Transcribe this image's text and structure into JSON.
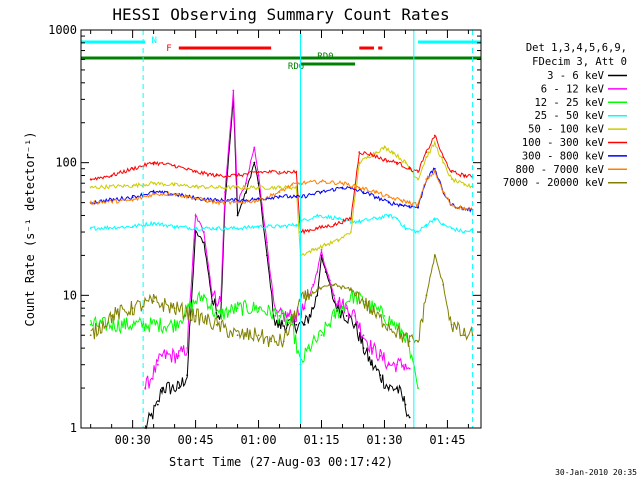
{
  "chart_data": {
    "type": "line",
    "title": "HESSI Observing Summary Count Rates",
    "xlabel": "Start Time (27-Aug-03 00:17:42)",
    "ylabel": "Count Rate (s⁻¹ detector⁻¹)",
    "y_scale": "log",
    "ylim": [
      1,
      1000
    ],
    "xlim": [
      "00:17:42",
      "01:53:00"
    ],
    "grid": false,
    "legend_position": "right",
    "footer": "30-Jan-2010 20:35",
    "x_tick_labels": [
      "00:30",
      "00:45",
      "01:00",
      "01:15",
      "01:30",
      "01:45"
    ],
    "x_ticks_minutes": [
      30,
      45,
      60,
      75,
      90,
      105
    ],
    "y_tick_labels": [
      "1",
      "10",
      "100",
      "1000"
    ],
    "y_ticks": [
      1,
      10,
      100,
      1000
    ],
    "legend_header": [
      "Det 1,3,4,5,6,9,",
      "FDecim 3, Att 0"
    ],
    "flag_labels": {
      "night": "N",
      "flare": "F",
      "rd0": "RD0",
      "rd6": "RD6"
    },
    "flags": {
      "night": [
        [
          "00:17:42",
          "00:33:00"
        ],
        [
          "01:38:00",
          "01:53:00"
        ]
      ],
      "flare": [
        [
          "00:41:00",
          "01:03:00"
        ],
        [
          "01:24:00",
          "01:27:30"
        ],
        [
          "01:28:30",
          "01:29:30"
        ]
      ],
      "rd0": [
        [
          "00:17:42",
          "01:53:00"
        ]
      ],
      "rd6": [
        [
          "01:10:00",
          "01:23:00"
        ]
      ]
    },
    "saa_markers_solid": [
      "01:10:00",
      "01:37:00"
    ],
    "saa_markers_dashed": [
      "00:32:30",
      "01:51:00"
    ],
    "series": [
      {
        "name": "3 - 6 keV",
        "color": "#000000",
        "x": [
          "00:33",
          "00:36",
          "00:37",
          "00:41",
          "00:43",
          "00:45",
          "00:47",
          "00:49",
          "00:51",
          "00:52",
          "00:54",
          "00:55",
          "00:57",
          "00:59",
          "01:00",
          "01:02",
          "01:04",
          "01:05",
          "01:07",
          "01:09",
          "01:11",
          "01:13",
          "01:14",
          "01:15",
          "01:16",
          "01:17",
          "01:18",
          "01:19",
          "01:21",
          "01:23",
          "01:25",
          "01:27",
          "01:29",
          "01:31",
          "01:33",
          "01:35",
          "01:36"
        ],
        "y": [
          1.0,
          1.5,
          2.0,
          2.0,
          2.5,
          30,
          25,
          9,
          7,
          50,
          300,
          40,
          60,
          100,
          70,
          20,
          6,
          6,
          6,
          6,
          6,
          8,
          10,
          20,
          15,
          12,
          9,
          8,
          7,
          6,
          4,
          3,
          2.5,
          2,
          2,
          1.5,
          1.2
        ]
      },
      {
        "name": "6 - 12 keV",
        "color": "#ff00ff",
        "x": [
          "00:33",
          "00:36",
          "00:37",
          "00:41",
          "00:43",
          "00:45",
          "00:47",
          "00:49",
          "00:51",
          "00:52",
          "00:54",
          "00:55",
          "00:57",
          "00:59",
          "01:00",
          "01:02",
          "01:04",
          "01:05",
          "01:07",
          "01:09",
          "01:11",
          "01:13",
          "01:14",
          "01:15",
          "01:16",
          "01:17",
          "01:18",
          "01:19",
          "01:21",
          "01:23",
          "01:25",
          "01:27",
          "01:29",
          "01:31",
          "01:33",
          "01:35",
          "01:36"
        ],
        "y": [
          2.0,
          3.0,
          3.5,
          3.5,
          4.0,
          40,
          30,
          10,
          9,
          60,
          350,
          50,
          70,
          130,
          80,
          25,
          7,
          7,
          7,
          7,
          8,
          12,
          15,
          22,
          16,
          13,
          10,
          9,
          8,
          7,
          5,
          4,
          3.5,
          3,
          3,
          3,
          2.8
        ]
      },
      {
        "name": "12 - 25 keV",
        "color": "#00ff00",
        "x": [
          "00:20",
          "00:30",
          "00:40",
          "00:45",
          "00:47",
          "00:50",
          "00:55",
          "01:00",
          "01:05",
          "01:08",
          "01:10",
          "01:12",
          "01:15",
          "01:18",
          "01:20",
          "01:22",
          "01:25",
          "01:30",
          "01:35",
          "01:38"
        ],
        "y": [
          6,
          6,
          6,
          9,
          10,
          7,
          8,
          8,
          7,
          6,
          3,
          4,
          5,
          7,
          8,
          10,
          9,
          7,
          5,
          2
        ]
      },
      {
        "name": "25 - 50 keV",
        "color": "#00ffff",
        "x": [
          "00:20",
          "00:30",
          "00:35",
          "00:40",
          "00:45",
          "00:50",
          "00:55",
          "01:00",
          "01:05",
          "01:09",
          "01:10",
          "01:14",
          "01:19",
          "01:20",
          "01:24",
          "01:28",
          "01:31",
          "01:33",
          "01:35",
          "01:38",
          "01:40",
          "01:42",
          "01:44",
          "01:46",
          "01:49",
          "01:51"
        ],
        "y": [
          32,
          33,
          35,
          33,
          32,
          32,
          32,
          33,
          33,
          34,
          36,
          40,
          38,
          36,
          36,
          38,
          40,
          38,
          32,
          30,
          34,
          38,
          34,
          32,
          30,
          31
        ]
      },
      {
        "name": "50 - 100 keV",
        "color": "#cccc00",
        "x": [
          "00:20",
          "00:30",
          "00:35",
          "00:40",
          "00:45",
          "00:50",
          "00:55",
          "01:00",
          "01:05",
          "01:09",
          "01:10",
          "01:13",
          "01:16",
          "01:19",
          "01:22",
          "01:24",
          "01:26",
          "01:28",
          "01:30",
          "01:32",
          "01:35",
          "01:38",
          "01:40",
          "01:42",
          "01:44",
          "01:46",
          "01:49",
          "01:51"
        ],
        "y": [
          65,
          67,
          70,
          68,
          66,
          65,
          65,
          65,
          65,
          65,
          20,
          22,
          24,
          26,
          30,
          100,
          110,
          120,
          130,
          120,
          100,
          75,
          110,
          140,
          100,
          75,
          68,
          66
        ]
      },
      {
        "name": "100 - 300 keV",
        "color": "#ff0000",
        "x": [
          "00:20",
          "00:25",
          "00:30",
          "00:35",
          "00:40",
          "00:45",
          "00:50",
          "00:55",
          "01:00",
          "01:05",
          "01:09",
          "01:10",
          "01:14",
          "01:18",
          "01:22",
          "01:24",
          "01:27",
          "01:30",
          "01:33",
          "01:36",
          "01:38",
          "01:40",
          "01:42",
          "01:44",
          "01:46",
          "01:49",
          "01:51"
        ],
        "y": [
          75,
          80,
          90,
          100,
          95,
          85,
          80,
          80,
          85,
          85,
          85,
          30,
          32,
          34,
          38,
          120,
          115,
          105,
          100,
          90,
          85,
          120,
          160,
          110,
          85,
          80,
          78
        ]
      },
      {
        "name": "300 - 800 keV",
        "color": "#0000ff",
        "x": [
          "00:20",
          "00:30",
          "00:35",
          "00:40",
          "00:45",
          "00:50",
          "00:55",
          "01:00",
          "01:05",
          "01:09",
          "01:10",
          "01:15",
          "01:20",
          "01:22",
          "01:25",
          "01:28",
          "01:31",
          "01:34",
          "01:36",
          "01:38",
          "01:40",
          "01:42",
          "01:44",
          "01:46",
          "01:49",
          "01:51"
        ],
        "y": [
          50,
          55,
          60,
          58,
          54,
          52,
          52,
          53,
          56,
          55,
          55,
          60,
          65,
          64,
          60,
          55,
          50,
          48,
          47,
          46,
          75,
          90,
          60,
          48,
          45,
          44
        ]
      },
      {
        "name": "800 - 7000 keV",
        "color": "#ff8000",
        "x": [
          "00:20",
          "00:30",
          "00:35",
          "00:40",
          "00:45",
          "00:50",
          "00:55",
          "01:00",
          "01:05",
          "01:08",
          "01:10",
          "01:15",
          "01:20",
          "01:24",
          "01:28",
          "01:31",
          "01:34",
          "01:36",
          "01:38",
          "01:40",
          "01:42",
          "01:44",
          "01:46",
          "01:49",
          "01:51"
        ],
        "y": [
          50,
          52,
          58,
          58,
          54,
          50,
          50,
          52,
          60,
          68,
          70,
          72,
          70,
          65,
          60,
          55,
          52,
          50,
          48,
          75,
          85,
          60,
          48,
          45,
          44
        ]
      },
      {
        "name": "7000 - 20000 keV",
        "color": "#808000",
        "x": [
          "00:20",
          "00:25",
          "00:30",
          "00:35",
          "00:40",
          "00:45",
          "00:50",
          "00:55",
          "01:00",
          "01:03",
          "01:06",
          "01:10",
          "01:14",
          "01:18",
          "01:22",
          "01:25",
          "01:28",
          "01:31",
          "01:34",
          "01:36",
          "01:38",
          "01:40",
          "01:42",
          "01:44",
          "01:46",
          "01:49",
          "01:51"
        ],
        "y": [
          5,
          7,
          8,
          9,
          8,
          7,
          6,
          5,
          5,
          4.5,
          4.5,
          9,
          11,
          12,
          11,
          9,
          7,
          6,
          5,
          4.5,
          4.5,
          10,
          20,
          12,
          6,
          5,
          5
        ]
      }
    ]
  }
}
